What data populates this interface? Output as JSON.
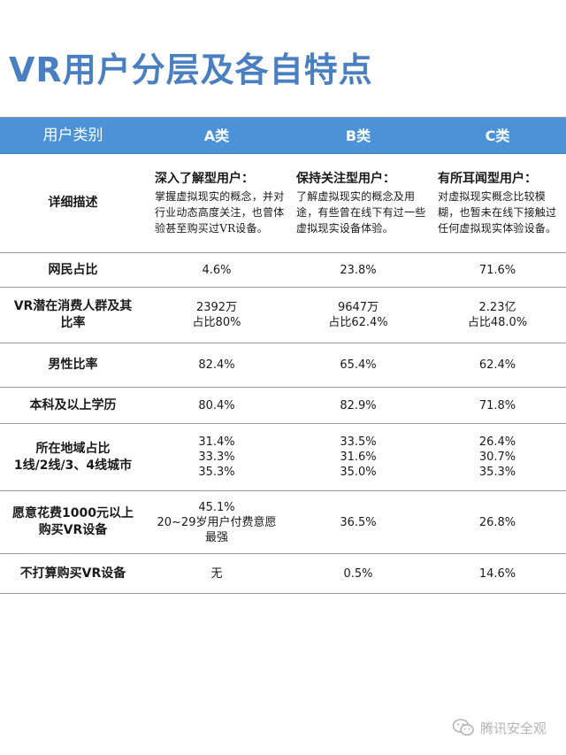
{
  "title": "VR用户分层及各自特点",
  "headers": [
    "用户类别",
    "A类",
    "B类",
    "C类"
  ],
  "description_row": {
    "label": "详细描述",
    "A": {
      "title": "深入了解型用户：",
      "text": "掌握虚拟现实的概念，并对行业动态高度关注，也曾体验甚至购买过VR设备。"
    },
    "B": {
      "title": "保持关注型用户：",
      "text": "了解虚拟现实的概念及用途，有些曾在线下有过一些虚拟现实设备体验。"
    },
    "C": {
      "title": "有所耳闻型用户：",
      "text": "对虚拟现实概念比较模糊，也暂未在线下接触过任何虚拟现实体验设备。"
    }
  },
  "rows": [
    {
      "label": [
        "网民占比"
      ],
      "A": [
        "4.6%"
      ],
      "B": [
        "23.8%"
      ],
      "C": [
        "71.6%"
      ]
    },
    {
      "label": [
        "VR潜在消费人群及其",
        "比率"
      ],
      "A": [
        "2392万",
        "占比80%"
      ],
      "B": [
        "9647万",
        "占比62.4%"
      ],
      "C": [
        "2.23亿",
        "占比48.0%"
      ]
    },
    {
      "label": [
        "男性比率"
      ],
      "A": [
        "82.4%"
      ],
      "B": [
        "65.4%"
      ],
      "C": [
        "62.4%"
      ]
    },
    {
      "label": [
        "本科及以上学历"
      ],
      "A": [
        "80.4%"
      ],
      "B": [
        "82.9%"
      ],
      "C": [
        "71.8%"
      ]
    },
    {
      "label": [
        "所在地域占比",
        "1线/2线/3、4线城市"
      ],
      "A": [
        "31.4%",
        "33.3%",
        "35.3%"
      ],
      "B": [
        "33.5%",
        "31.6%",
        "35.0%"
      ],
      "C": [
        "26.4%",
        "30.7%",
        "35.3%"
      ]
    },
    {
      "label": [
        "愿意花费1000元以上",
        "购买VR设备"
      ],
      "A": [
        "45.1%",
        "20~29岁用户付费意愿",
        "最强"
      ],
      "B": [
        "36.5%"
      ],
      "C": [
        "26.8%"
      ]
    },
    {
      "label": [
        "不打算购买VR设备"
      ],
      "A": [
        "无"
      ],
      "B": [
        "0.5%"
      ],
      "C": [
        "14.6%"
      ]
    }
  ],
  "watermark": {
    "text": "腾讯安全观",
    "icon": "wechat-icon",
    "color": "#b5b5b5"
  },
  "colors": {
    "title": "#4a7fc1",
    "header_bg": "#4b93d6"
  }
}
